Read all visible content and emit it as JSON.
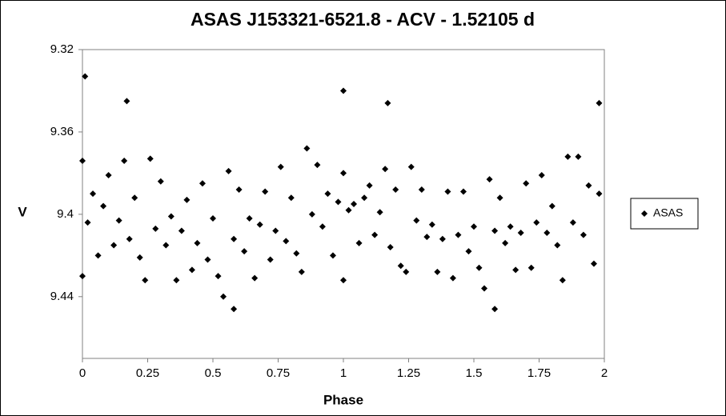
{
  "chart_data": {
    "type": "scatter",
    "title": "ASAS J153321-6521.8 - ACV - 1.52105 d",
    "x_label": "Phase",
    "y_label": "V",
    "xlim": [
      0,
      2
    ],
    "xticks": [
      0,
      0.25,
      0.5,
      0.75,
      1,
      1.25,
      1.5,
      1.75,
      2
    ],
    "ylim": [
      9.32,
      9.47
    ],
    "yticks": [
      9.32,
      9.36,
      9.4,
      9.44
    ],
    "y_inverted": true,
    "grid": false,
    "legend": "right",
    "series": [
      {
        "name": "ASAS",
        "color": "#000000",
        "x": [
          0.0,
          0.02,
          0.04,
          0.06,
          0.08,
          0.1,
          0.12,
          0.14,
          0.16,
          0.18,
          0.2,
          0.22,
          0.24,
          0.26,
          0.28,
          0.3,
          0.32,
          0.34,
          0.36,
          0.38,
          0.4,
          0.42,
          0.44,
          0.46,
          0.48,
          0.5,
          0.52,
          0.54,
          0.56,
          0.58,
          0.6,
          0.62,
          0.64,
          0.66,
          0.68,
          0.7,
          0.72,
          0.74,
          0.76,
          0.78,
          0.8,
          0.82,
          0.84,
          0.86,
          0.88,
          0.9,
          0.92,
          0.94,
          0.96,
          0.98,
          1.0,
          1.02,
          1.04,
          1.06,
          1.08,
          1.1,
          1.12,
          1.14,
          1.16,
          1.18,
          1.2,
          1.22,
          1.24,
          1.26,
          1.28,
          1.3,
          1.32,
          1.34,
          1.36,
          1.38,
          1.4,
          1.42,
          1.44,
          1.46,
          1.48,
          1.5,
          1.52,
          1.54,
          1.56,
          1.58,
          1.6,
          1.62,
          1.64,
          1.66,
          1.68,
          1.7,
          1.72,
          1.74,
          1.76,
          1.78,
          1.8,
          1.82,
          1.84,
          1.86,
          1.88,
          1.9,
          1.92,
          1.94,
          1.96,
          1.98,
          0.01,
          0.58,
          1.0,
          1.58,
          1.98,
          0.17,
          1.17,
          0.0,
          1.0
        ],
        "values": [
          9.374,
          9.404,
          9.39,
          9.42,
          9.396,
          9.381,
          9.415,
          9.403,
          9.374,
          9.412,
          9.392,
          9.421,
          9.432,
          9.373,
          9.407,
          9.384,
          9.415,
          9.401,
          9.432,
          9.408,
          9.393,
          9.427,
          9.414,
          9.385,
          9.422,
          9.402,
          9.43,
          9.44,
          9.379,
          9.412,
          9.388,
          9.418,
          9.402,
          9.431,
          9.405,
          9.389,
          9.422,
          9.408,
          9.377,
          9.413,
          9.392,
          9.419,
          9.428,
          9.368,
          9.4,
          9.376,
          9.406,
          9.39,
          9.42,
          9.394,
          9.38,
          9.398,
          9.395,
          9.414,
          9.392,
          9.386,
          9.41,
          9.399,
          9.378,
          9.416,
          9.388,
          9.425,
          9.428,
          9.377,
          9.403,
          9.388,
          9.411,
          9.405,
          9.428,
          9.412,
          9.389,
          9.431,
          9.41,
          9.389,
          9.418,
          9.406,
          9.426,
          9.436,
          9.383,
          9.408,
          9.392,
          9.414,
          9.406,
          9.427,
          9.409,
          9.385,
          9.426,
          9.404,
          9.381,
          9.409,
          9.396,
          9.415,
          9.432,
          9.372,
          9.404,
          9.372,
          9.41,
          9.386,
          9.424,
          9.39,
          9.333,
          9.446,
          9.34,
          9.446,
          9.346,
          9.345,
          9.346,
          9.43,
          9.432
        ]
      }
    ]
  }
}
